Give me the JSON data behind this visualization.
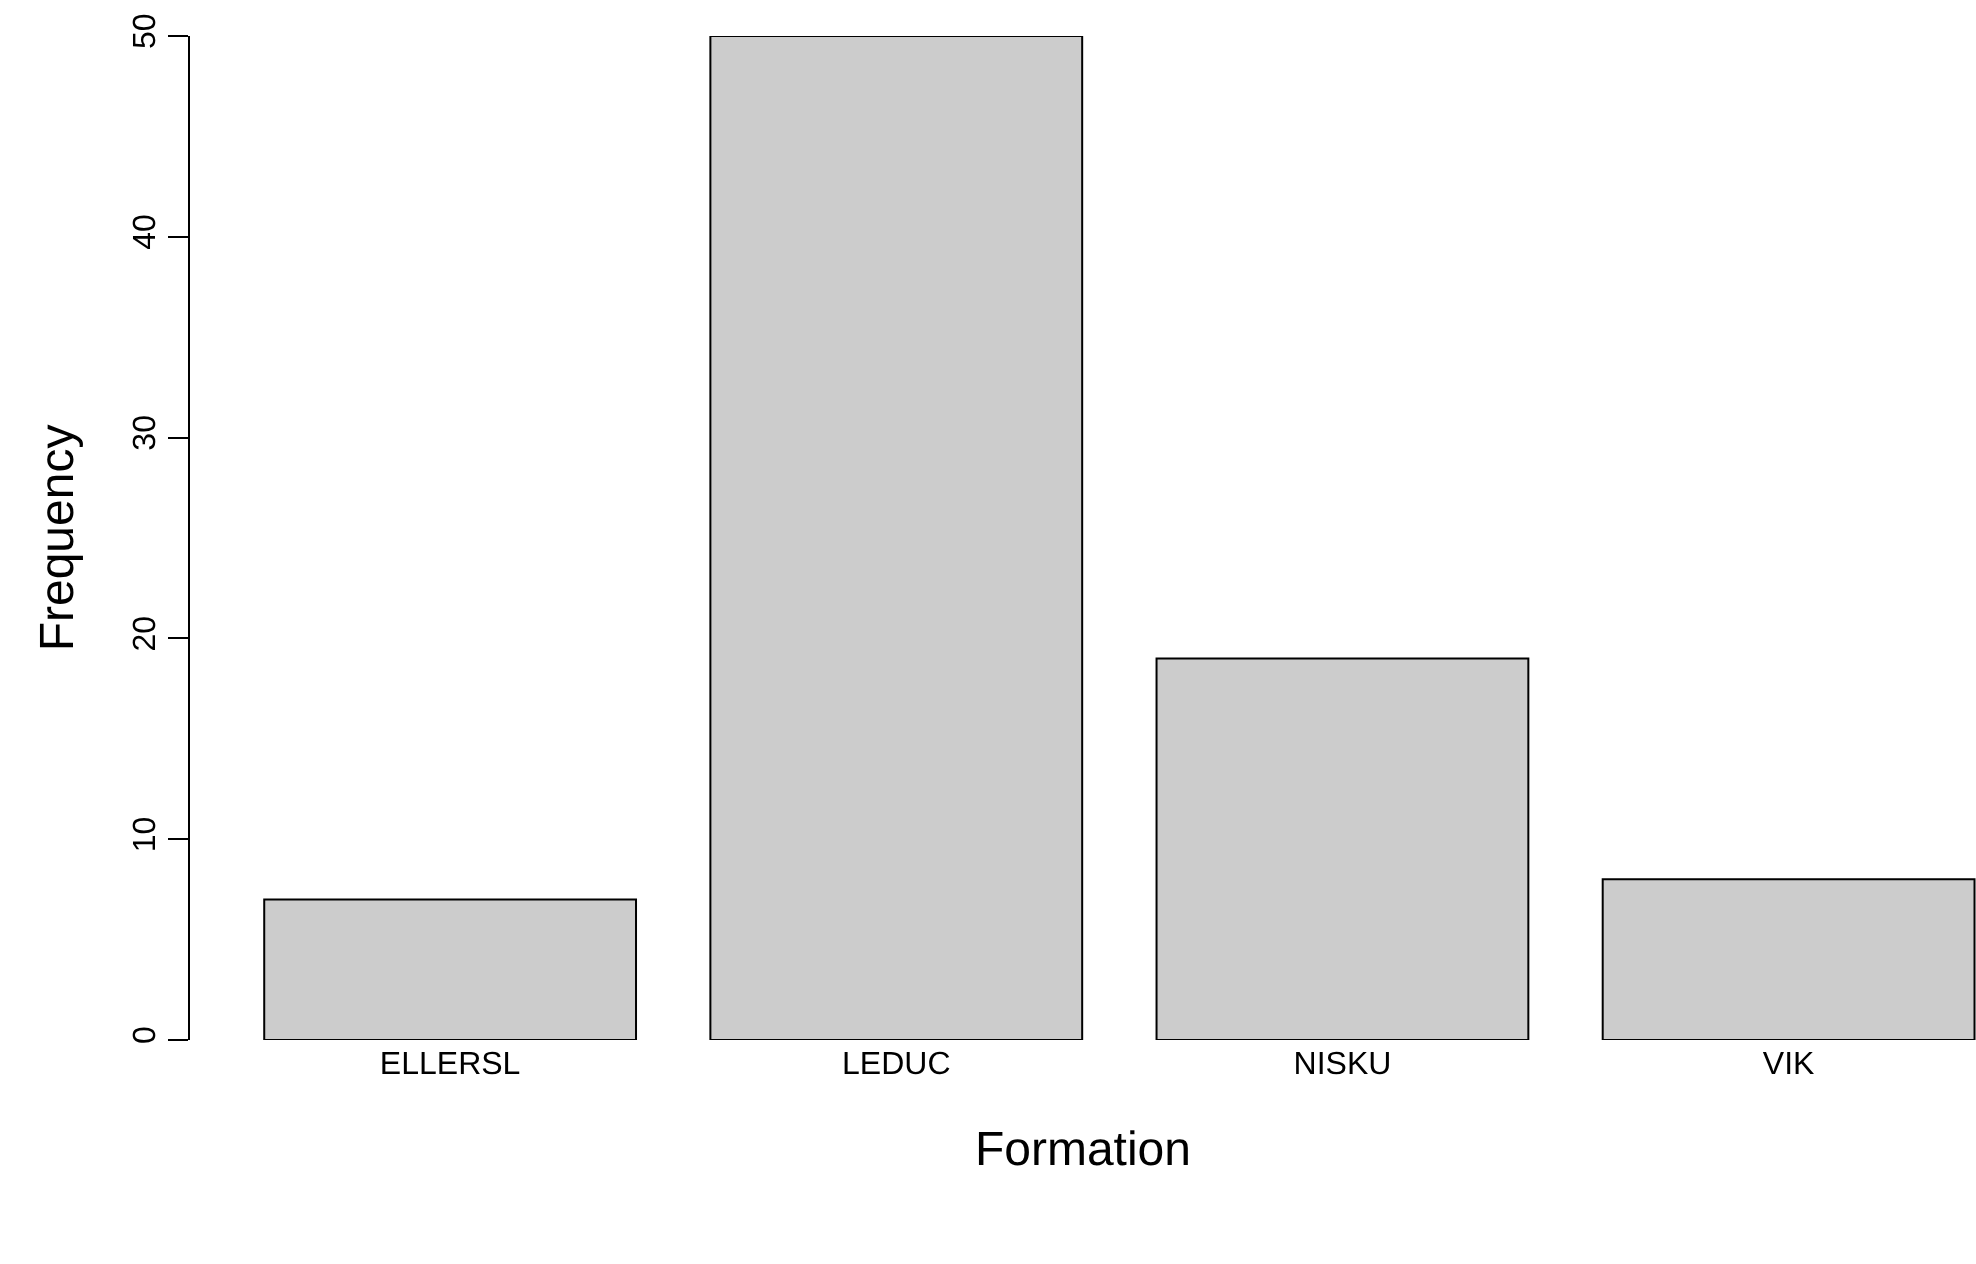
{
  "chart_data": {
    "type": "bar",
    "xlabel": "Formation",
    "ylabel": "Frequency",
    "categories": [
      "ELLERSL",
      "LEDUC",
      "NISKU",
      "VIK"
    ],
    "values": [
      7,
      50,
      19,
      8
    ],
    "color": "#cccccc",
    "ylim": [
      0,
      50
    ],
    "yticks": [
      0,
      10,
      20,
      30,
      40,
      50
    ],
    "grid": false
  }
}
